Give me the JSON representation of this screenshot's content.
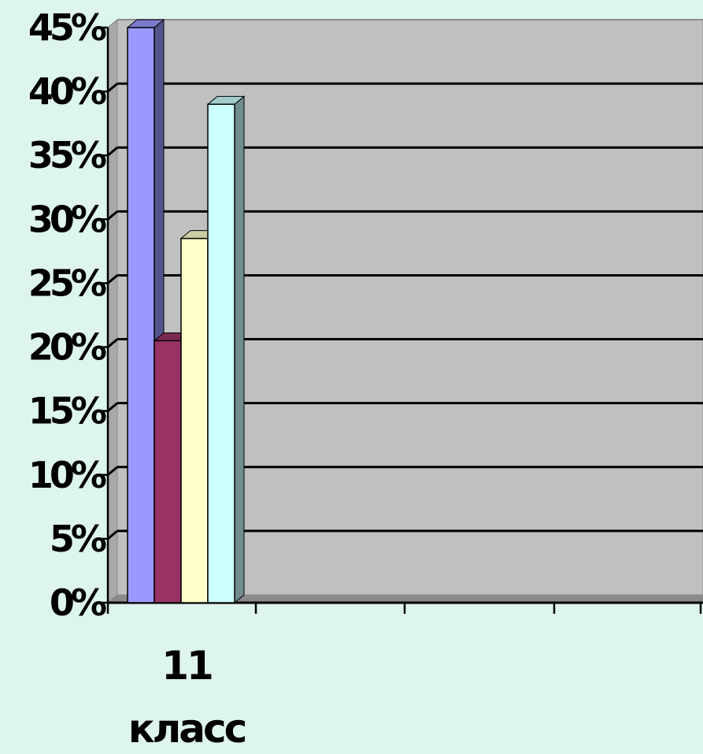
{
  "chart_data": {
    "type": "bar",
    "categories": [
      "11 класс"
    ],
    "category_label_lines": [
      "11",
      "класс"
    ],
    "series": [
      {
        "values": [
          45
        ],
        "color": "#9999ff"
      },
      {
        "values": [
          20.5
        ],
        "color": "#993366"
      },
      {
        "values": [
          28.5
        ],
        "color": "#ffffcc"
      },
      {
        "values": [
          39
        ],
        "color": "#ccffff"
      }
    ],
    "ylim": [
      0,
      45
    ],
    "yticks": [
      0,
      5,
      10,
      15,
      20,
      25,
      30,
      35,
      40,
      45
    ],
    "ytick_labels": [
      "0%",
      "5%",
      "10%",
      "15%",
      "20%",
      "25%",
      "30%",
      "35%",
      "40%",
      "45%"
    ],
    "grid": true,
    "style": "3d-column",
    "colors": {
      "background": "#def4ef",
      "plot_area": "#c0c0c0",
      "side_wall": "#a8a8a8",
      "floor": "#8a8a8a",
      "gridline": "#000000"
    }
  }
}
